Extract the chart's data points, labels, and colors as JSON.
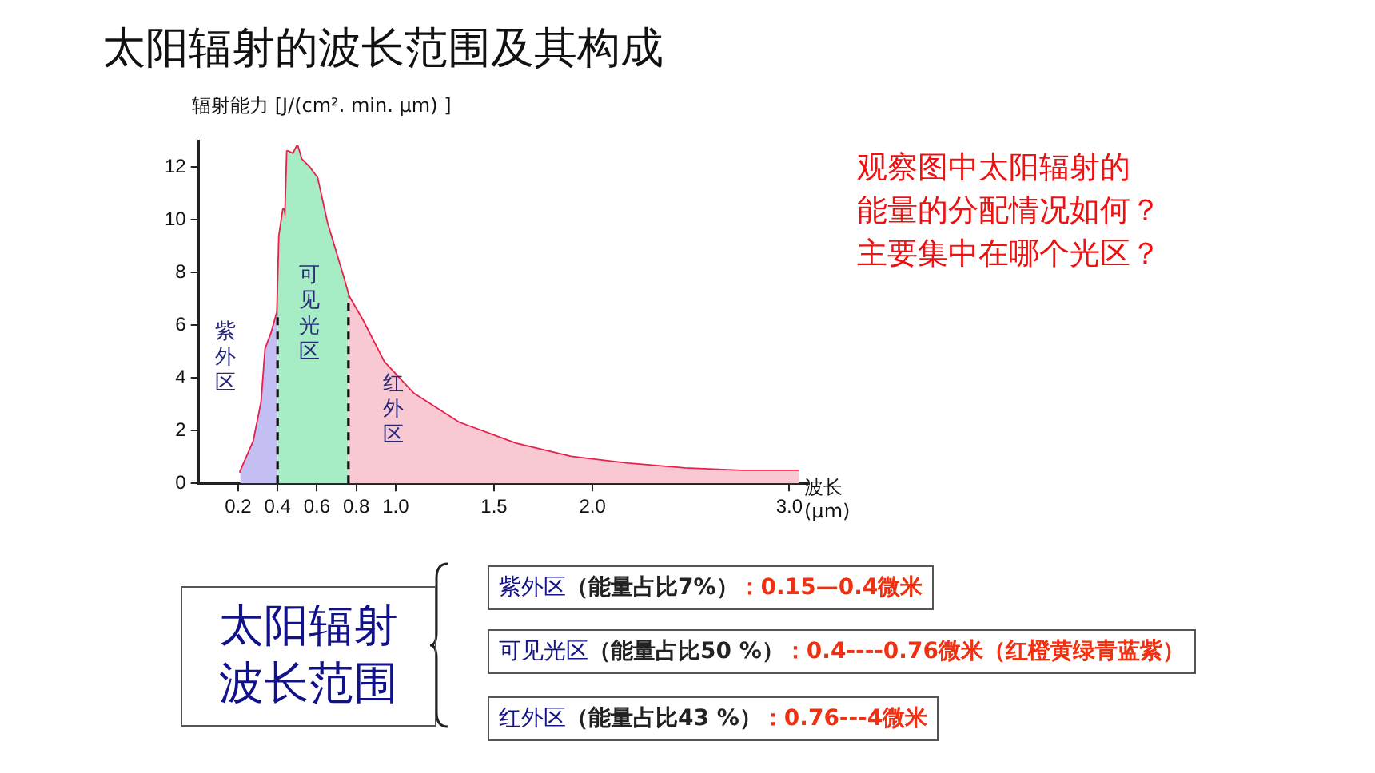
{
  "chart_data": {
    "type": "area",
    "title": "太阳辐射的波长范围及其构成",
    "ylabel": "辐射能力 [J/(cm². min. μm) ]",
    "xlabel": "波长 (μm)",
    "xlim": [
      0,
      3.1
    ],
    "xticks": [
      {
        "value": 0.2,
        "label": "0.2"
      },
      {
        "value": 0.4,
        "label": "0.4"
      },
      {
        "value": 0.6,
        "label": "0.6"
      },
      {
        "value": 0.8,
        "label": "0.8"
      },
      {
        "value": 1,
        "label": "1.0"
      },
      {
        "value": 1.5,
        "label": "1.5"
      },
      {
        "value": 2,
        "label": "2.0"
      },
      {
        "value": 3,
        "label": "3.0"
      }
    ],
    "ylim": [
      0,
      13
    ],
    "yticks": [
      0,
      2,
      4,
      6,
      8,
      10,
      12
    ],
    "grid": false,
    "legend": false,
    "series": [
      {
        "name": "紫外区",
        "color": "#c4bff2",
        "x": [
          0.21,
          0.28,
          0.32,
          0.34,
          0.37,
          0.4
        ],
        "values": [
          0.4,
          1.6,
          3.1,
          5.1,
          5.7,
          6.5
        ]
      },
      {
        "name": "可见光区",
        "color": "#a6ecc4",
        "x": [
          0.4,
          0.41,
          0.43,
          0.44,
          0.45,
          0.48,
          0.5,
          0.52,
          0.56,
          0.58,
          0.6,
          0.65,
          0.73,
          0.76
        ],
        "values": [
          6.5,
          9.4,
          10.4,
          10,
          12.6,
          12.5,
          12.8,
          12.3,
          12,
          11.8,
          11.6,
          9.9,
          7.9,
          7.1
        ]
      },
      {
        "name": "红外区",
        "color": "#f9c9d3",
        "x": [
          0.76,
          0.83,
          0.94,
          1.09,
          1.32,
          1.61,
          1.89,
          2.18,
          2.47,
          2.76,
          3.05
        ],
        "values": [
          7.1,
          6.2,
          4.6,
          3.4,
          2.3,
          1.5,
          1,
          0.74,
          0.56,
          0.47,
          0.47
        ]
      },
      {
        "type": "line",
        "color": "#e8204a",
        "x": [
          0.21,
          0.28,
          0.32,
          0.34,
          0.37,
          0.4,
          0.41,
          0.43,
          0.44,
          0.45,
          0.48,
          0.5,
          0.52,
          0.56,
          0.58,
          0.6,
          0.65,
          0.73,
          0.76,
          0.83,
          0.94,
          1.09,
          1.32,
          1.61,
          1.89,
          2.18,
          2.47,
          2.76,
          3.05
        ],
        "values": [
          0.4,
          1.6,
          3.1,
          5.1,
          5.7,
          6.5,
          9.4,
          10.4,
          10,
          12.6,
          12.5,
          12.8,
          12.3,
          12,
          11.8,
          11.6,
          9.9,
          7.9,
          7.1,
          6.2,
          4.6,
          3.4,
          2.3,
          1.5,
          1,
          0.74,
          0.56,
          0.47,
          0.47
        ]
      }
    ],
    "ref_lines": [
      {
        "axis": "x",
        "value": 0.4,
        "color": "#111111",
        "line_style": "dashed"
      },
      {
        "axis": "x",
        "value": 0.76,
        "color": "#111111",
        "line_style": "dashed"
      }
    ],
    "annotations": [
      "观察图中太阳辐射的",
      "能量的分配情况如何？",
      "主要集中在哪个光区？",
      "太阳辐射",
      "波长范围",
      "紫外区（能量占比7%）：0.15—0.4微米",
      "可见光区（能量占比50 %）：0.4----0.76微米（红橙黄绿青蓝紫）",
      "红外区（能量占比43 %）：0.76---4微米"
    ]
  }
}
